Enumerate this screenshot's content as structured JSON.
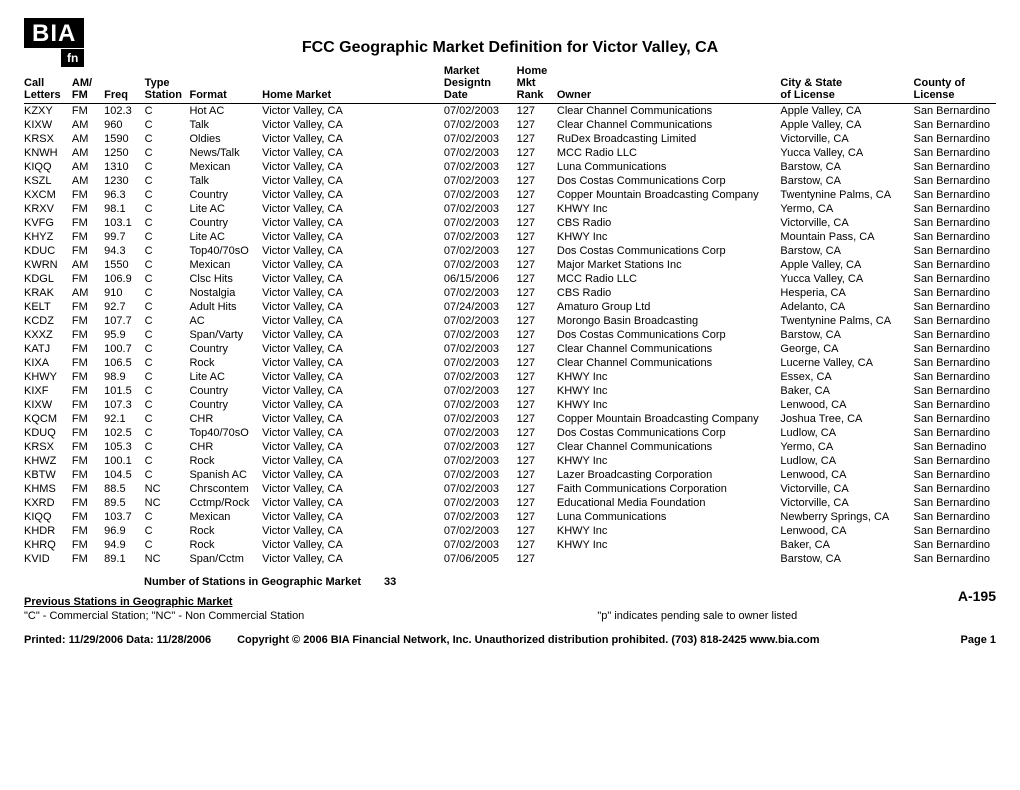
{
  "logo": {
    "main": "BIA",
    "sub": "fn"
  },
  "title": "FCC Geographic Market Definition for Victor Valley, CA",
  "columns": {
    "call1": "Call",
    "call2": "Letters",
    "band1": "AM/",
    "band2": "FM",
    "freq": "Freq",
    "type": "Type",
    "station": "Station",
    "format": "Format",
    "home_market": "Home Market",
    "mkt1": "Market",
    "mkt2": "Designtn",
    "mkt3": "Date",
    "home1": "Home",
    "home2": "Mkt",
    "home3": "Rank",
    "owner": "Owner",
    "city1": "City & State",
    "city2": "of License",
    "county1": "County of",
    "county2": "License"
  },
  "rows": [
    {
      "call": "KZXY",
      "band": "FM",
      "freq": "102.3",
      "st": "C",
      "fmt": "Hot AC",
      "mkt": "Victor Valley, CA",
      "date": "07/02/2003",
      "rank": "127",
      "owner": "Clear Channel Communications",
      "city": "Apple Valley, CA",
      "county": "San Bernardino"
    },
    {
      "call": "KIXW",
      "band": "AM",
      "freq": "960",
      "st": "C",
      "fmt": "Talk",
      "mkt": "Victor Valley, CA",
      "date": "07/02/2003",
      "rank": "127",
      "owner": "Clear Channel Communications",
      "city": "Apple Valley, CA",
      "county": "San Bernardino"
    },
    {
      "call": "KRSX",
      "band": "AM",
      "freq": "1590",
      "st": "C",
      "fmt": "Oldies",
      "mkt": "Victor Valley, CA",
      "date": "07/02/2003",
      "rank": "127",
      "owner": "RuDex Broadcasting Limited",
      "city": "Victorville, CA",
      "county": "San Bernardino"
    },
    {
      "call": "KNWH",
      "band": "AM",
      "freq": "1250",
      "st": "C",
      "fmt": "News/Talk",
      "mkt": "Victor Valley, CA",
      "date": "07/02/2003",
      "rank": "127",
      "owner": "MCC Radio LLC",
      "city": "Yucca Valley, CA",
      "county": "San Bernardino"
    },
    {
      "call": "KIQQ",
      "band": "AM",
      "freq": "1310",
      "st": "C",
      "fmt": "Mexican",
      "mkt": "Victor Valley, CA",
      "date": "07/02/2003",
      "rank": "127",
      "owner": "Luna Communications",
      "city": "Barstow, CA",
      "county": "San Bernardino"
    },
    {
      "call": "KSZL",
      "band": "AM",
      "freq": "1230",
      "st": "C",
      "fmt": "Talk",
      "mkt": "Victor Valley, CA",
      "date": "07/02/2003",
      "rank": "127",
      "owner": "Dos Costas Communications Corp",
      "city": "Barstow, CA",
      "county": "San Bernardino"
    },
    {
      "call": "KXCM",
      "band": "FM",
      "freq": "96.3",
      "st": "C",
      "fmt": "Country",
      "mkt": "Victor Valley, CA",
      "date": "07/02/2003",
      "rank": "127",
      "owner": "Copper Mountain Broadcasting Company",
      "city": "Twentynine Palms, CA",
      "county": "San Bernardino"
    },
    {
      "call": "KRXV",
      "band": "FM",
      "freq": "98.1",
      "st": "C",
      "fmt": "Lite AC",
      "mkt": "Victor Valley, CA",
      "date": "07/02/2003",
      "rank": "127",
      "owner": "KHWY Inc",
      "city": "Yermo, CA",
      "county": "San Bernardino"
    },
    {
      "call": "KVFG",
      "band": "FM",
      "freq": "103.1",
      "st": "C",
      "fmt": "Country",
      "mkt": "Victor Valley, CA",
      "date": "07/02/2003",
      "rank": "127",
      "owner": "CBS Radio",
      "city": "Victorville, CA",
      "county": "San Bernardino"
    },
    {
      "call": "KHYZ",
      "band": "FM",
      "freq": "99.7",
      "st": "C",
      "fmt": "Lite AC",
      "mkt": "Victor Valley, CA",
      "date": "07/02/2003",
      "rank": "127",
      "owner": "KHWY Inc",
      "city": "Mountain Pass, CA",
      "county": "San Bernardino"
    },
    {
      "call": "KDUC",
      "band": "FM",
      "freq": "94.3",
      "st": "C",
      "fmt": "Top40/70sO",
      "mkt": "Victor Valley, CA",
      "date": "07/02/2003",
      "rank": "127",
      "owner": "Dos Costas Communications Corp",
      "city": "Barstow, CA",
      "county": "San Bernardino"
    },
    {
      "call": "KWRN",
      "band": "AM",
      "freq": "1550",
      "st": "C",
      "fmt": "Mexican",
      "mkt": "Victor Valley, CA",
      "date": "07/02/2003",
      "rank": "127",
      "owner": "Major Market Stations Inc",
      "city": "Apple Valley, CA",
      "county": "San Bernardino"
    },
    {
      "call": "KDGL",
      "band": "FM",
      "freq": "106.9",
      "st": "C",
      "fmt": "Clsc Hits",
      "mkt": "Victor Valley, CA",
      "date": "06/15/2006",
      "rank": "127",
      "owner": "MCC Radio LLC",
      "city": "Yucca Valley, CA",
      "county": "San Bernardino"
    },
    {
      "call": "KRAK",
      "band": "AM",
      "freq": "910",
      "st": "C",
      "fmt": "Nostalgia",
      "mkt": "Victor Valley, CA",
      "date": "07/02/2003",
      "rank": "127",
      "owner": "CBS Radio",
      "city": "Hesperia, CA",
      "county": "San Bernardino"
    },
    {
      "call": "KELT",
      "band": "FM",
      "freq": "92.7",
      "st": "C",
      "fmt": "Adult Hits",
      "mkt": "Victor Valley, CA",
      "date": "07/24/2003",
      "rank": "127",
      "owner": "Amaturo Group Ltd",
      "city": "Adelanto, CA",
      "county": "San Bernardino"
    },
    {
      "call": "KCDZ",
      "band": "FM",
      "freq": "107.7",
      "st": "C",
      "fmt": "AC",
      "mkt": "Victor Valley, CA",
      "date": "07/02/2003",
      "rank": "127",
      "owner": "Morongo Basin Broadcasting",
      "city": "Twentynine Palms, CA",
      "county": "San Bernardino"
    },
    {
      "call": "KXXZ",
      "band": "FM",
      "freq": "95.9",
      "st": "C",
      "fmt": "Span/Varty",
      "mkt": "Victor Valley, CA",
      "date": "07/02/2003",
      "rank": "127",
      "owner": "Dos Costas Communications Corp",
      "city": "Barstow, CA",
      "county": "San Bernardino"
    },
    {
      "call": "KATJ",
      "band": "FM",
      "freq": "100.7",
      "st": "C",
      "fmt": "Country",
      "mkt": "Victor Valley, CA",
      "date": "07/02/2003",
      "rank": "127",
      "owner": "Clear Channel Communications",
      "city": "George, CA",
      "county": "San Bernardino"
    },
    {
      "call": "KIXA",
      "band": "FM",
      "freq": "106.5",
      "st": "C",
      "fmt": "Rock",
      "mkt": "Victor Valley, CA",
      "date": "07/02/2003",
      "rank": "127",
      "owner": "Clear Channel Communications",
      "city": "Lucerne Valley, CA",
      "county": "San Bernardino"
    },
    {
      "call": "KHWY",
      "band": "FM",
      "freq": "98.9",
      "st": "C",
      "fmt": "Lite AC",
      "mkt": "Victor Valley, CA",
      "date": "07/02/2003",
      "rank": "127",
      "owner": "KHWY Inc",
      "city": "Essex, CA",
      "county": "San Bernardino"
    },
    {
      "call": "KIXF",
      "band": "FM",
      "freq": "101.5",
      "st": "C",
      "fmt": "Country",
      "mkt": "Victor Valley, CA",
      "date": "07/02/2003",
      "rank": "127",
      "owner": "KHWY Inc",
      "city": "Baker, CA",
      "county": "San Bernardino"
    },
    {
      "call": "KIXW",
      "band": "FM",
      "freq": "107.3",
      "st": "C",
      "fmt": "Country",
      "mkt": "Victor Valley, CA",
      "date": "07/02/2003",
      "rank": "127",
      "owner": "KHWY Inc",
      "city": "Lenwood, CA",
      "county": "San Bernardino"
    },
    {
      "call": "KQCM",
      "band": "FM",
      "freq": "92.1",
      "st": "C",
      "fmt": "CHR",
      "mkt": "Victor Valley, CA",
      "date": "07/02/2003",
      "rank": "127",
      "owner": "Copper Mountain Broadcasting Company",
      "city": "Joshua Tree, CA",
      "county": "San Bernardino"
    },
    {
      "call": "KDUQ",
      "band": "FM",
      "freq": "102.5",
      "st": "C",
      "fmt": "Top40/70sO",
      "mkt": "Victor Valley, CA",
      "date": "07/02/2003",
      "rank": "127",
      "owner": "Dos Costas Communications Corp",
      "city": "Ludlow, CA",
      "county": "San Bernardino"
    },
    {
      "call": "KRSX",
      "band": "FM",
      "freq": "105.3",
      "st": "C",
      "fmt": "CHR",
      "mkt": "Victor Valley, CA",
      "date": "07/02/2003",
      "rank": "127",
      "owner": "Clear Channel Communications",
      "city": "Yermo, CA",
      "county": "San Bernadino"
    },
    {
      "call": "KHWZ",
      "band": "FM",
      "freq": "100.1",
      "st": "C",
      "fmt": "Rock",
      "mkt": "Victor Valley, CA",
      "date": "07/02/2003",
      "rank": "127",
      "owner": "KHWY Inc",
      "city": "Ludlow, CA",
      "county": "San Bernardino"
    },
    {
      "call": "KBTW",
      "band": "FM",
      "freq": "104.5",
      "st": "C",
      "fmt": "Spanish AC",
      "mkt": "Victor Valley, CA",
      "date": "07/02/2003",
      "rank": "127",
      "owner": "Lazer Broadcasting Corporation",
      "city": "Lenwood, CA",
      "county": "San Bernardino"
    },
    {
      "call": "KHMS",
      "band": "FM",
      "freq": "88.5",
      "st": "NC",
      "fmt": "Chrscontem",
      "mkt": "Victor Valley, CA",
      "date": "07/02/2003",
      "rank": "127",
      "owner": "Faith Communications Corporation",
      "city": "Victorville, CA",
      "county": "San Bernardino"
    },
    {
      "call": "KXRD",
      "band": "FM",
      "freq": "89.5",
      "st": "NC",
      "fmt": "Cctmp/Rock",
      "mkt": "Victor Valley, CA",
      "date": "07/02/2003",
      "rank": "127",
      "owner": "Educational Media Foundation",
      "city": "Victorville, CA",
      "county": "San Bernardino"
    },
    {
      "call": "KIQQ",
      "band": "FM",
      "freq": "103.7",
      "st": "C",
      "fmt": "Mexican",
      "mkt": "Victor Valley, CA",
      "date": "07/02/2003",
      "rank": "127",
      "owner": "Luna Communications",
      "city": "Newberry Springs, CA",
      "county": "San Bernardino"
    },
    {
      "call": "KHDR",
      "band": "FM",
      "freq": "96.9",
      "st": "C",
      "fmt": "Rock",
      "mkt": "Victor Valley, CA",
      "date": "07/02/2003",
      "rank": "127",
      "owner": "KHWY Inc",
      "city": "Lenwood, CA",
      "county": "San Bernardino"
    },
    {
      "call": "KHRQ",
      "band": "FM",
      "freq": "94.9",
      "st": "C",
      "fmt": "Rock",
      "mkt": "Victor Valley, CA",
      "date": "07/02/2003",
      "rank": "127",
      "owner": "KHWY Inc",
      "city": "Baker, CA",
      "county": "San Bernardino"
    },
    {
      "call": "KVID",
      "band": "FM",
      "freq": "89.1",
      "st": "NC",
      "fmt": "Span/Cctm",
      "mkt": "Victor Valley, CA",
      "date": "07/06/2005",
      "rank": "127",
      "owner": "",
      "city": "Barstow, CA",
      "county": "San Bernardino"
    }
  ],
  "summary": {
    "label": "Number of Stations in Geographic Market",
    "count": "33"
  },
  "previous": "Previous Stations in Geographic Market",
  "pageCode": "A-195",
  "legend": {
    "left": "\"C\" - Commercial Station;   \"NC\" - Non Commercial Station",
    "right": "\"p\" indicates pending sale to owner listed"
  },
  "footer": {
    "printed": "Printed: 11/29/2006  Data: 11/28/2006",
    "copyright": "Copyright © 2006 BIA Financial Network, Inc. Unauthorized distribution prohibited. (703) 818-2425  www.bia.com",
    "page": "Page 1"
  }
}
